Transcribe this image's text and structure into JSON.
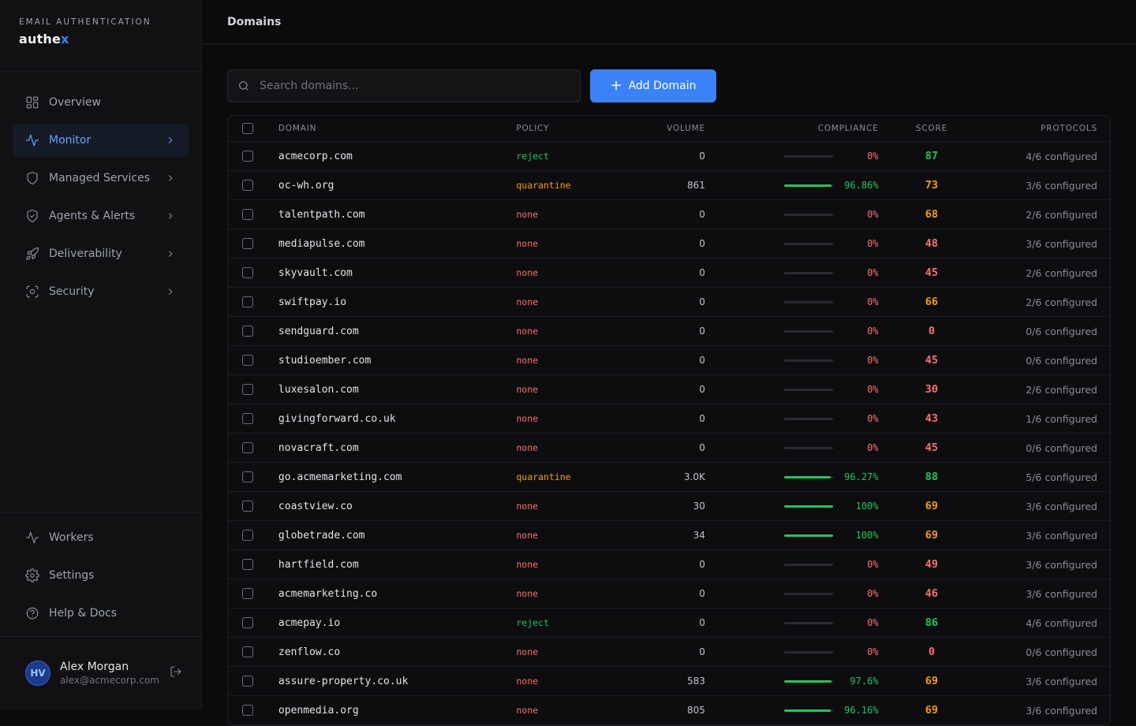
{
  "brand": {
    "kicker": "EMAIL AUTHENTICATION",
    "name_main": "authe",
    "name_accent": "x"
  },
  "nav": {
    "items": [
      {
        "label": "Overview",
        "icon": "grid-icon",
        "chevron": false,
        "active": false
      },
      {
        "label": "Monitor",
        "icon": "activity-icon",
        "chevron": true,
        "active": true
      },
      {
        "label": "Managed Services",
        "icon": "shield-icon",
        "chevron": true,
        "active": false
      },
      {
        "label": "Agents & Alerts",
        "icon": "shield-check-icon",
        "chevron": true,
        "active": false
      },
      {
        "label": "Deliverability",
        "icon": "rocket-icon",
        "chevron": true,
        "active": false
      },
      {
        "label": "Security",
        "icon": "scan-icon",
        "chevron": true,
        "active": false
      }
    ],
    "bottom": [
      {
        "label": "Workers",
        "icon": "activity-icon"
      },
      {
        "label": "Settings",
        "icon": "gear-icon"
      },
      {
        "label": "Help & Docs",
        "icon": "help-circle-icon"
      }
    ]
  },
  "user": {
    "initials": "HV",
    "name": "Alex Morgan",
    "email": "alex@acmecorp.com"
  },
  "page": {
    "title": "Domains"
  },
  "toolbar": {
    "search_placeholder": "Search domains...",
    "add_label": "Add Domain"
  },
  "colors": {
    "accent": "#3b82f6",
    "good": "#22c55e",
    "warn": "#f59e0b",
    "bad": "#f87171",
    "policy_reject": "#22c55e",
    "policy_quarantine": "#f59e0b",
    "policy_none": "#f87171"
  },
  "table": {
    "headers": {
      "domain": "DOMAIN",
      "policy": "POLICY",
      "volume": "VOLUME",
      "compliance": "COMPLIANCE",
      "score": "SCORE",
      "protocols": "PROTOCOLS"
    },
    "rows": [
      {
        "domain": "acmecorp.com",
        "policy": "reject",
        "volume": "0",
        "compliance": "0%",
        "compliance_value": 0,
        "score": "87",
        "protocols": "4/6 configured"
      },
      {
        "domain": "oc-wh.org",
        "policy": "quarantine",
        "volume": "861",
        "compliance": "96.86%",
        "compliance_value": 96.86,
        "score": "73",
        "protocols": "3/6 configured"
      },
      {
        "domain": "talentpath.com",
        "policy": "none",
        "volume": "0",
        "compliance": "0%",
        "compliance_value": 0,
        "score": "68",
        "protocols": "2/6 configured"
      },
      {
        "domain": "mediapulse.com",
        "policy": "none",
        "volume": "0",
        "compliance": "0%",
        "compliance_value": 0,
        "score": "48",
        "protocols": "3/6 configured"
      },
      {
        "domain": "skyvault.com",
        "policy": "none",
        "volume": "0",
        "compliance": "0%",
        "compliance_value": 0,
        "score": "45",
        "protocols": "2/6 configured"
      },
      {
        "domain": "swiftpay.io",
        "policy": "none",
        "volume": "0",
        "compliance": "0%",
        "compliance_value": 0,
        "score": "66",
        "protocols": "2/6 configured"
      },
      {
        "domain": "sendguard.com",
        "policy": "none",
        "volume": "0",
        "compliance": "0%",
        "compliance_value": 0,
        "score": "0",
        "protocols": "0/6 configured"
      },
      {
        "domain": "studioember.com",
        "policy": "none",
        "volume": "0",
        "compliance": "0%",
        "compliance_value": 0,
        "score": "45",
        "protocols": "0/6 configured"
      },
      {
        "domain": "luxesalon.com",
        "policy": "none",
        "volume": "0",
        "compliance": "0%",
        "compliance_value": 0,
        "score": "30",
        "protocols": "2/6 configured"
      },
      {
        "domain": "givingforward.co.uk",
        "policy": "none",
        "volume": "0",
        "compliance": "0%",
        "compliance_value": 0,
        "score": "43",
        "protocols": "1/6 configured"
      },
      {
        "domain": "novacraft.com",
        "policy": "none",
        "volume": "0",
        "compliance": "0%",
        "compliance_value": 0,
        "score": "45",
        "protocols": "0/6 configured"
      },
      {
        "domain": "go.acmemarketing.com",
        "policy": "quarantine",
        "volume": "3.0K",
        "compliance": "96.27%",
        "compliance_value": 96.27,
        "score": "88",
        "protocols": "5/6 configured"
      },
      {
        "domain": "coastview.co",
        "policy": "none",
        "volume": "30",
        "compliance": "100%",
        "compliance_value": 100,
        "score": "69",
        "protocols": "3/6 configured"
      },
      {
        "domain": "globetrade.com",
        "policy": "none",
        "volume": "34",
        "compliance": "100%",
        "compliance_value": 100,
        "score": "69",
        "protocols": "3/6 configured"
      },
      {
        "domain": "hartfield.com",
        "policy": "none",
        "volume": "0",
        "compliance": "0%",
        "compliance_value": 0,
        "score": "49",
        "protocols": "3/6 configured"
      },
      {
        "domain": "acmemarketing.co",
        "policy": "none",
        "volume": "0",
        "compliance": "0%",
        "compliance_value": 0,
        "score": "46",
        "protocols": "3/6 configured"
      },
      {
        "domain": "acmepay.io",
        "policy": "reject",
        "volume": "0",
        "compliance": "0%",
        "compliance_value": 0,
        "score": "86",
        "protocols": "4/6 configured"
      },
      {
        "domain": "zenflow.co",
        "policy": "none",
        "volume": "0",
        "compliance": "0%",
        "compliance_value": 0,
        "score": "0",
        "protocols": "0/6 configured"
      },
      {
        "domain": "assure-property.co.uk",
        "policy": "none",
        "volume": "583",
        "compliance": "97.6%",
        "compliance_value": 97.6,
        "score": "69",
        "protocols": "3/6 configured"
      },
      {
        "domain": "openmedia.org",
        "policy": "none",
        "volume": "805",
        "compliance": "96.16%",
        "compliance_value": 96.16,
        "score": "69",
        "protocols": "3/6 configured"
      }
    ]
  }
}
